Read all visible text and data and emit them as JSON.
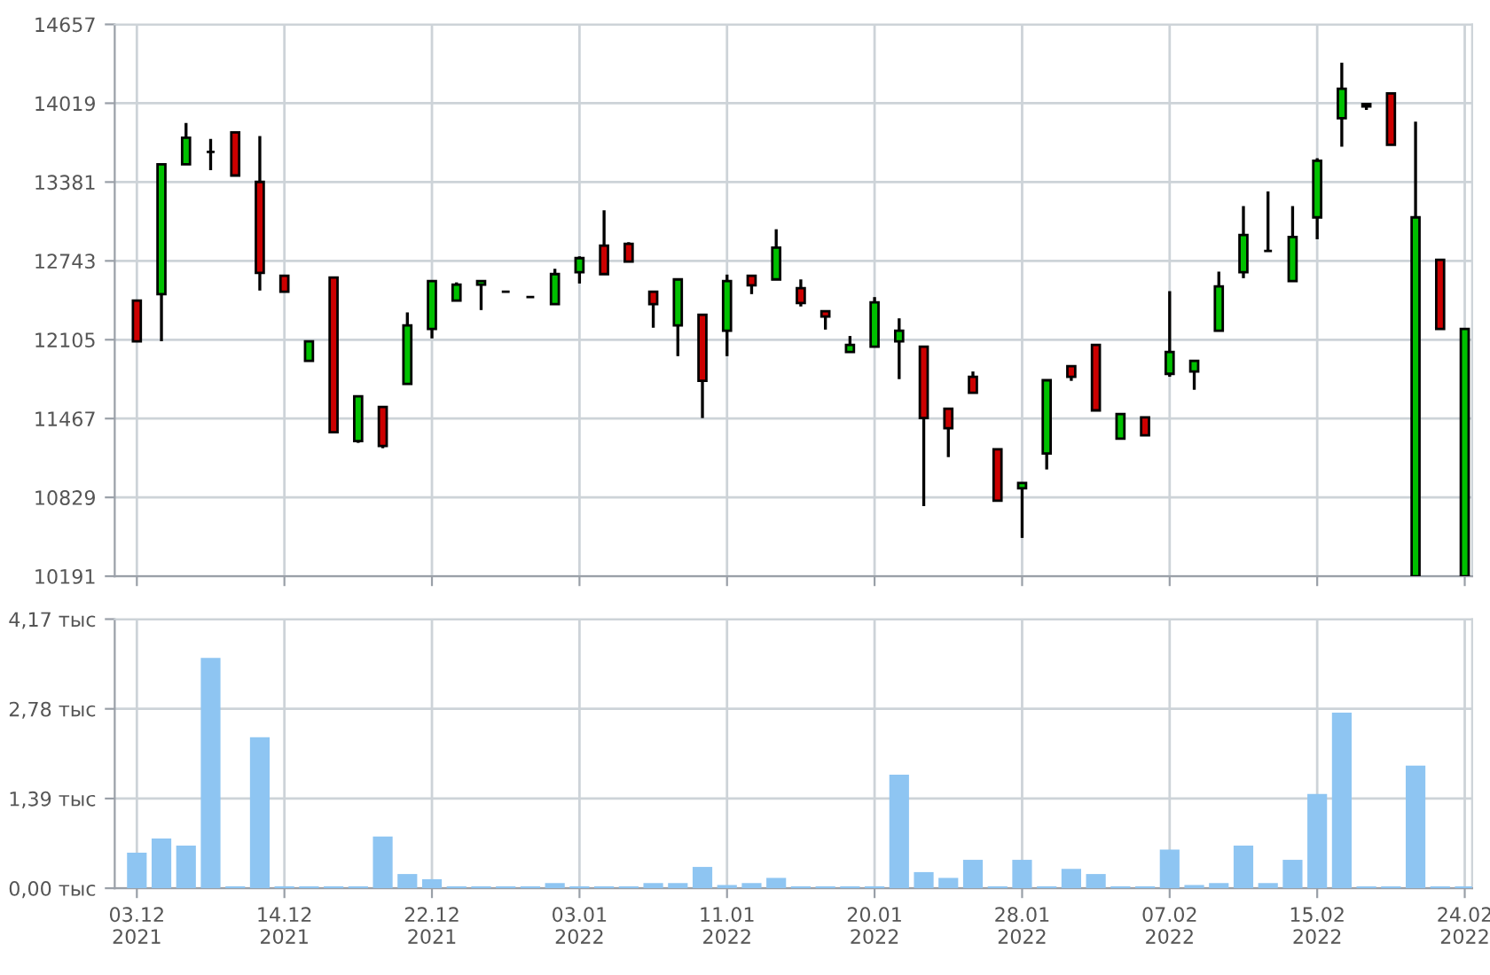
{
  "chart_data": [
    {
      "type": "candlestick",
      "tick_labels": "y",
      "grid": true,
      "categories": [
        null,
        null,
        null,
        null,
        null,
        null,
        null,
        null,
        null,
        null,
        null,
        null,
        null,
        null,
        null,
        null,
        null,
        null,
        null,
        null,
        null,
        null,
        null,
        null,
        null,
        null,
        null,
        null,
        null,
        null,
        null,
        null,
        null,
        null,
        null,
        null,
        null,
        null,
        null,
        null,
        null,
        null,
        null,
        null,
        null,
        null,
        null,
        null,
        null,
        null,
        null,
        null,
        null,
        null,
        null
      ],
      "ylim": [
        10191,
        14657
      ],
      "yticks": [
        10191,
        10829,
        11467,
        12105,
        12743,
        13381,
        14019,
        14657
      ],
      "ohlc": [
        [
          12421,
          12421,
          12092,
          12092
        ],
        [
          12474,
          13525,
          12092,
          13525
        ],
        [
          13525,
          13859,
          13525,
          13740
        ],
        [
          13625,
          13730,
          13477,
          13625
        ],
        [
          13783,
          13783,
          13434,
          13434
        ],
        [
          13382,
          13754,
          12503,
          12646
        ],
        [
          12622,
          12622,
          12493,
          12493
        ],
        [
          11934,
          12092,
          11934,
          12092
        ],
        [
          12608,
          12608,
          11356,
          11356
        ],
        [
          11284,
          11647,
          11270,
          11647
        ],
        [
          11561,
          11561,
          11227,
          11246
        ],
        [
          11748,
          12326,
          11748,
          12221
        ],
        [
          12192,
          12579,
          12116,
          12579
        ],
        [
          12421,
          12569,
          12421,
          12550
        ],
        [
          12550,
          12579,
          12345,
          12579
        ],
        [
          12493,
          12493,
          12493,
          12493
        ],
        [
          12450,
          12450,
          12450,
          12450
        ],
        [
          12393,
          12679,
          12393,
          12636
        ],
        [
          12651,
          12780,
          12560,
          12765
        ],
        [
          12866,
          13152,
          12636,
          12636
        ],
        [
          12880,
          12894,
          12737,
          12737
        ],
        [
          12493,
          12493,
          12202,
          12393
        ],
        [
          12221,
          12593,
          11972,
          12593
        ],
        [
          12307,
          12307,
          11471,
          11772
        ],
        [
          12178,
          12632,
          11972,
          12579
        ],
        [
          12622,
          12622,
          12474,
          12546
        ],
        [
          12593,
          12999,
          12593,
          12851
        ],
        [
          12522,
          12593,
          12374,
          12402
        ],
        [
          12335,
          12335,
          12187,
          12292
        ],
        [
          12006,
          12135,
          12006,
          12063
        ],
        [
          12049,
          12450,
          12049,
          12407
        ],
        [
          12092,
          12278,
          11786,
          12178
        ],
        [
          12049,
          12049,
          10759,
          11471
        ],
        [
          11547,
          11547,
          11155,
          11389
        ],
        [
          11805,
          11848,
          11676,
          11676
        ],
        [
          11218,
          11218,
          10802,
          10802
        ],
        [
          10902,
          10945,
          10501,
          10945
        ],
        [
          11184,
          11777,
          11055,
          11777
        ],
        [
          11891,
          11891,
          11772,
          11805
        ],
        [
          12063,
          12063,
          11533,
          11533
        ],
        [
          11304,
          11504,
          11304,
          11504
        ],
        [
          11476,
          11476,
          11332,
          11332
        ],
        [
          11829,
          12498,
          11805,
          12006
        ],
        [
          11848,
          11934,
          11700,
          11934
        ],
        [
          12178,
          12656,
          12178,
          12536
        ],
        [
          12651,
          13186,
          12603,
          12952
        ],
        [
          12823,
          13305,
          12823,
          12823
        ],
        [
          12579,
          13186,
          12579,
          12937
        ],
        [
          13095,
          13573,
          12918,
          13554
        ],
        [
          13897,
          14347,
          13668,
          14136
        ],
        [
          14012,
          14012,
          13964,
          13993
        ],
        [
          14098,
          14098,
          13682,
          13682
        ],
        [
          10191,
          13869,
          10191,
          13095
        ],
        [
          12751,
          12751,
          12192,
          12192
        ],
        [
          10191,
          12192,
          10191,
          12192
        ]
      ],
      "colors": [
        "#cc0000",
        "#00c000",
        "#00c000",
        "#000000",
        "#cc0000",
        "#cc0000",
        "#cc0000",
        "#00c000",
        "#cc0000",
        "#00c000",
        "#cc0000",
        "#00c000",
        "#00c000",
        "#00c000",
        "#00c000",
        "#000000",
        "#000000",
        "#00c000",
        "#00c000",
        "#cc0000",
        "#cc0000",
        "#cc0000",
        "#00c000",
        "#cc0000",
        "#00c000",
        "#cc0000",
        "#00c000",
        "#cc0000",
        "#cc0000",
        "#00c000",
        "#00c000",
        "#00c000",
        "#cc0000",
        "#cc0000",
        "#cc0000",
        "#cc0000",
        "#00c000",
        "#00c000",
        "#cc0000",
        "#cc0000",
        "#00c000",
        "#cc0000",
        "#00c000",
        "#00c000",
        "#00c000",
        "#00c000",
        "#000000",
        "#00c000",
        "#00c000",
        "#00c000",
        "#000000",
        "#cc0000",
        "#00c000",
        "#cc0000",
        "#00c000"
      ]
    },
    {
      "type": "bar",
      "grid": true,
      "color": "#8ec5f2",
      "categories": [
        "03.12\n2021",
        null,
        null,
        null,
        null,
        null,
        "14.12\n2021",
        null,
        null,
        null,
        null,
        null,
        "22.12\n2021",
        null,
        null,
        null,
        null,
        null,
        "03.01\n2022",
        null,
        null,
        null,
        null,
        null,
        "11.01\n2022",
        null,
        null,
        null,
        null,
        null,
        "20.01\n2022",
        null,
        null,
        null,
        null,
        null,
        "28.01\n2022",
        null,
        null,
        null,
        null,
        null,
        "07.02\n2022",
        null,
        null,
        null,
        null,
        null,
        "15.02\n2022",
        null,
        null,
        null,
        null,
        null,
        "24.02\n2022"
      ],
      "ylim": [
        0,
        4.17
      ],
      "yticks": [
        {
          "value": 0,
          "label": "0,00 тыс"
        },
        {
          "value": 1.39,
          "label": "1,39 тыс"
        },
        {
          "value": 2.78,
          "label": "2,78 тыс"
        },
        {
          "value": 4.17,
          "label": "4,17 тыс"
        }
      ],
      "values": [
        0.55,
        0.77,
        0.66,
        3.57,
        0.03,
        2.34,
        0.03,
        0.03,
        0.03,
        0.03,
        0.8,
        0.22,
        0.14,
        0.03,
        0.03,
        0.03,
        0.03,
        0.08,
        0.03,
        0.03,
        0.03,
        0.08,
        0.08,
        0.33,
        0.05,
        0.08,
        0.16,
        0.03,
        0.03,
        0.03,
        0.03,
        1.76,
        0.25,
        0.16,
        0.44,
        0.03,
        0.44,
        0.03,
        0.3,
        0.22,
        0.03,
        0.03,
        0.6,
        0.05,
        0.08,
        0.66,
        0.08,
        0.44,
        1.46,
        2.72,
        0.03,
        0.03,
        1.9,
        0.03,
        0.03
      ]
    }
  ]
}
